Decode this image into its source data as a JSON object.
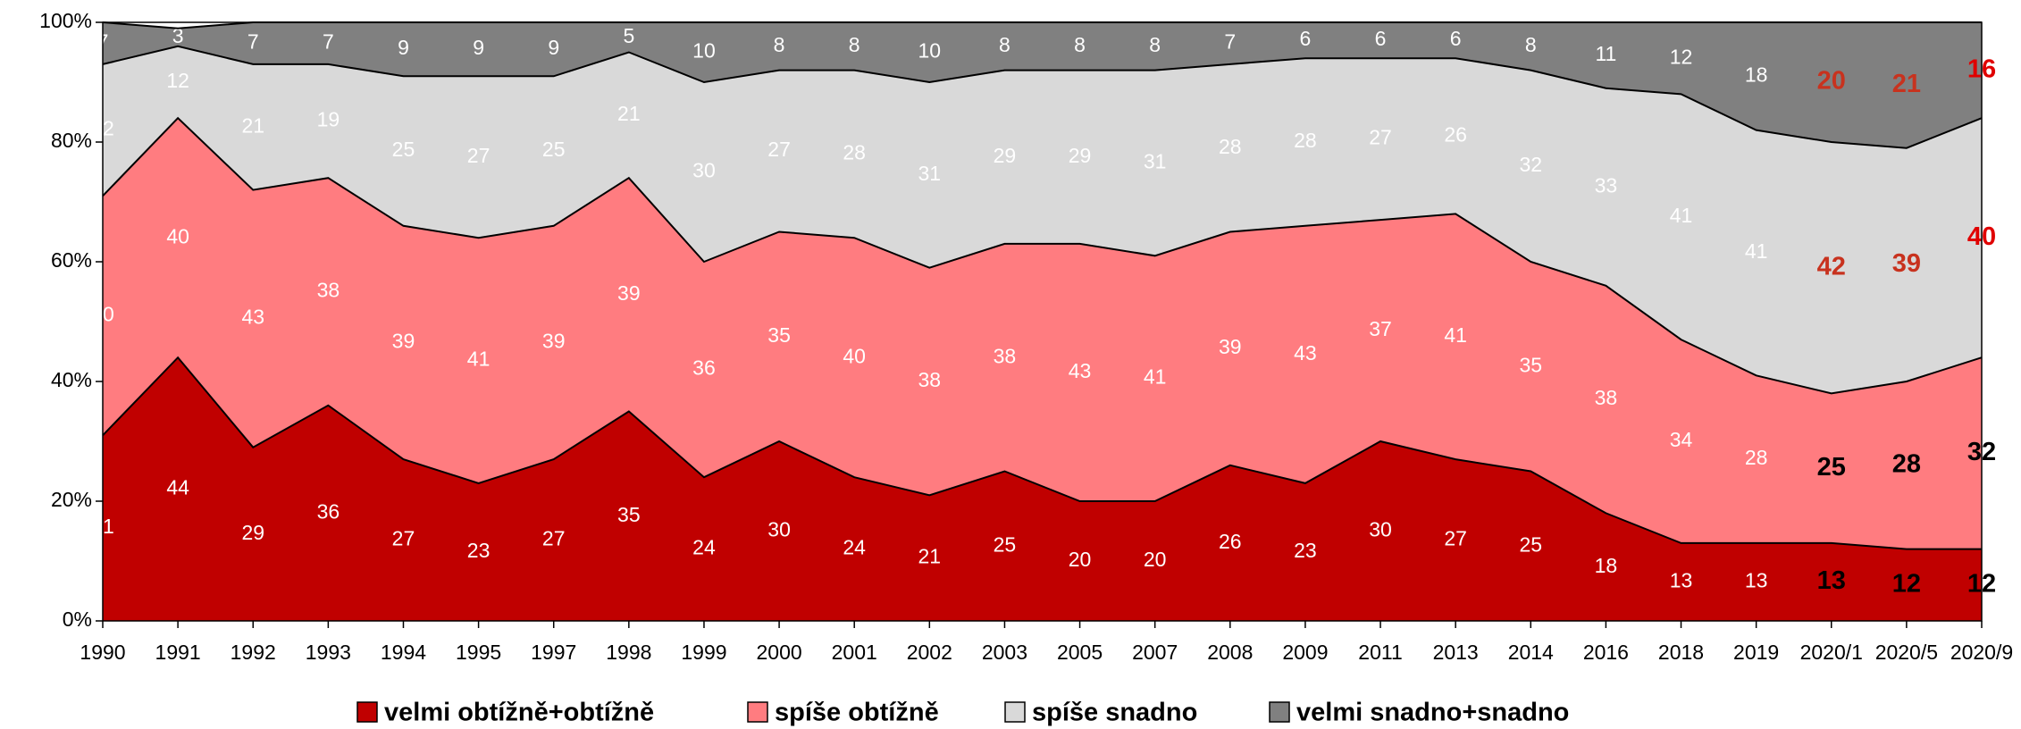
{
  "chart_data": {
    "type": "stacked_area",
    "categories": [
      "1990",
      "1991",
      "1992",
      "1993",
      "1994",
      "1995",
      "1997",
      "1998",
      "1999",
      "2000",
      "2001",
      "2002",
      "2003",
      "2005",
      "2007",
      "2008",
      "2009",
      "2011",
      "2013",
      "2014",
      "2016",
      "2018",
      "2019",
      "2020/1",
      "2020/5",
      "2020/9"
    ],
    "series": [
      {
        "name": "velmi obtížně+obtížně",
        "color": "#c00000",
        "values": [
          31,
          44,
          29,
          36,
          27,
          23,
          27,
          35,
          24,
          30,
          24,
          21,
          25,
          20,
          20,
          26,
          23,
          30,
          27,
          25,
          18,
          13,
          13,
          13,
          12,
          12
        ]
      },
      {
        "name": "spíše obtížně",
        "color": "#ff7c80",
        "values": [
          40,
          40,
          43,
          38,
          39,
          41,
          39,
          39,
          36,
          35,
          40,
          38,
          38,
          43,
          41,
          39,
          43,
          37,
          41,
          35,
          38,
          34,
          28,
          25,
          28,
          32
        ]
      },
      {
        "name": "spíše snadno",
        "color": "#d9d9d9",
        "values": [
          22,
          12,
          21,
          19,
          25,
          27,
          25,
          21,
          30,
          27,
          28,
          31,
          29,
          29,
          31,
          28,
          28,
          27,
          26,
          32,
          33,
          41,
          41,
          42,
          39,
          40
        ]
      },
      {
        "name": "velmi snadno+snadno",
        "color": "#808080",
        "values": [
          7,
          3,
          7,
          7,
          9,
          9,
          9,
          5,
          10,
          8,
          8,
          10,
          8,
          8,
          8,
          7,
          6,
          6,
          6,
          8,
          11,
          12,
          18,
          20,
          21,
          16
        ]
      }
    ],
    "ylim": [
      0,
      100
    ],
    "yticks": [
      {
        "value": 0,
        "label": "0%"
      },
      {
        "value": 20,
        "label": "20%"
      },
      {
        "value": 40,
        "label": "40%"
      },
      {
        "value": 60,
        "label": "60%"
      },
      {
        "value": 80,
        "label": "80%"
      },
      {
        "value": 100,
        "label": "100%"
      }
    ],
    "legend": "bottom"
  }
}
